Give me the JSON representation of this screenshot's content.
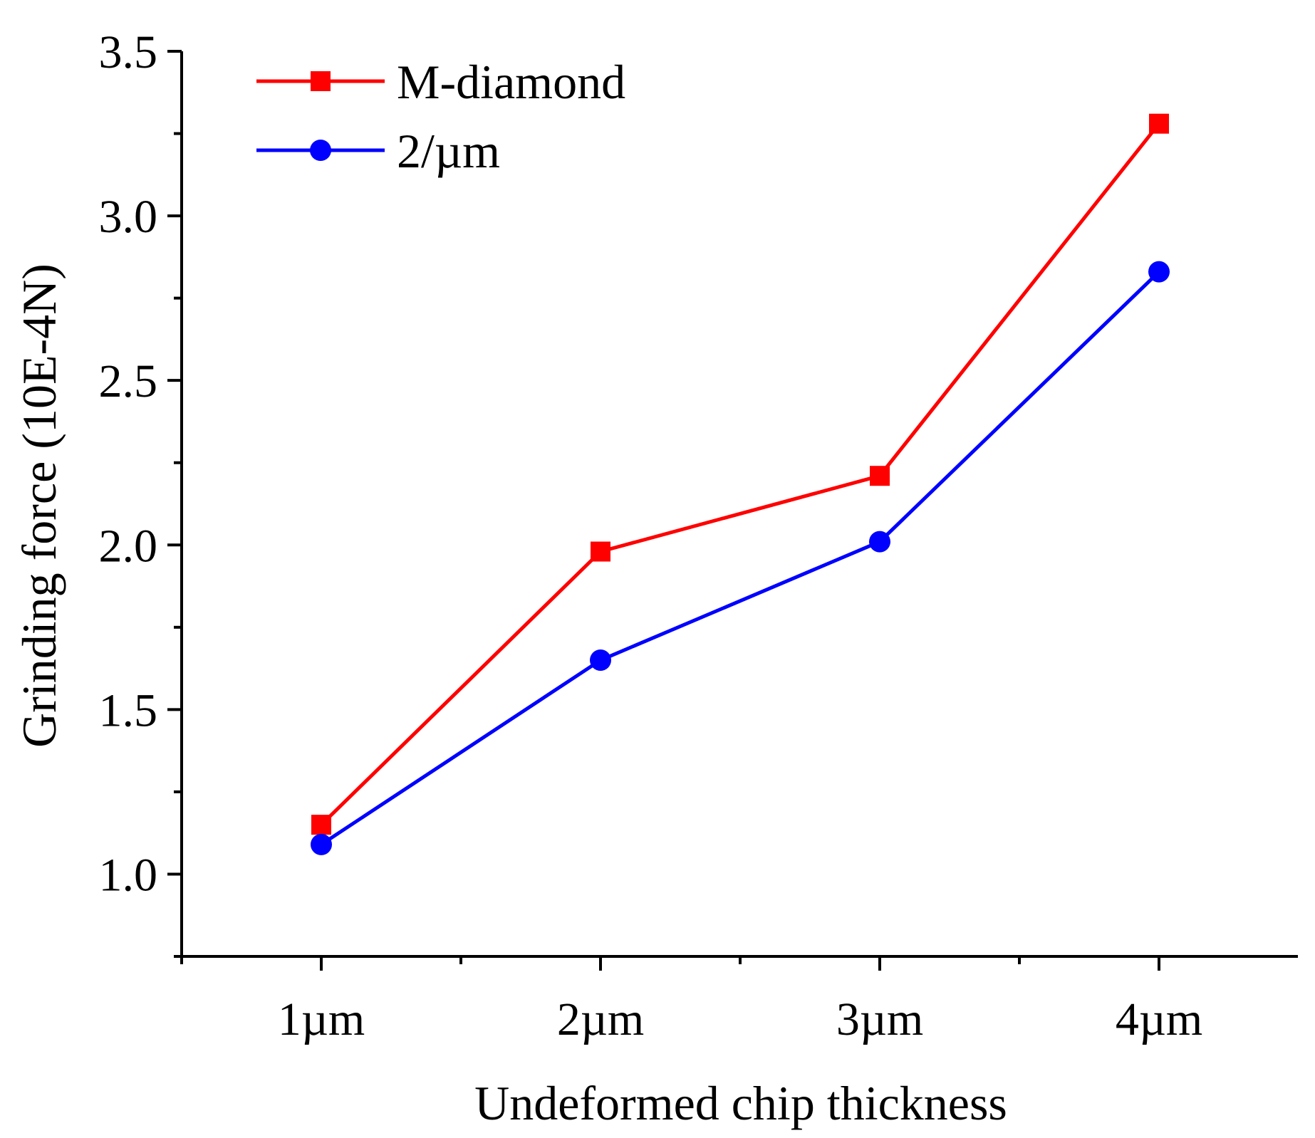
{
  "chart_data": {
    "type": "line",
    "title": "",
    "xlabel": "Undeformed chip thickness",
    "ylabel": "Grinding force (10E-4N)",
    "categories": [
      "1µm",
      "2µm",
      "3µm",
      "4µm"
    ],
    "ylim": [
      0.75,
      3.5
    ],
    "yticks": [
      "1.0",
      "1.5",
      "2.0",
      "2.5",
      "3.0",
      "3.5"
    ],
    "grid": false,
    "legend_position": "top-left",
    "series": [
      {
        "name": "M-diamond",
        "color": "#ff0000",
        "marker": "square",
        "values": [
          1.15,
          1.98,
          2.21,
          3.28
        ]
      },
      {
        "name": "2/µm",
        "color": "#0000ff",
        "marker": "circle",
        "values": [
          1.09,
          1.65,
          2.01,
          2.83
        ]
      }
    ]
  }
}
